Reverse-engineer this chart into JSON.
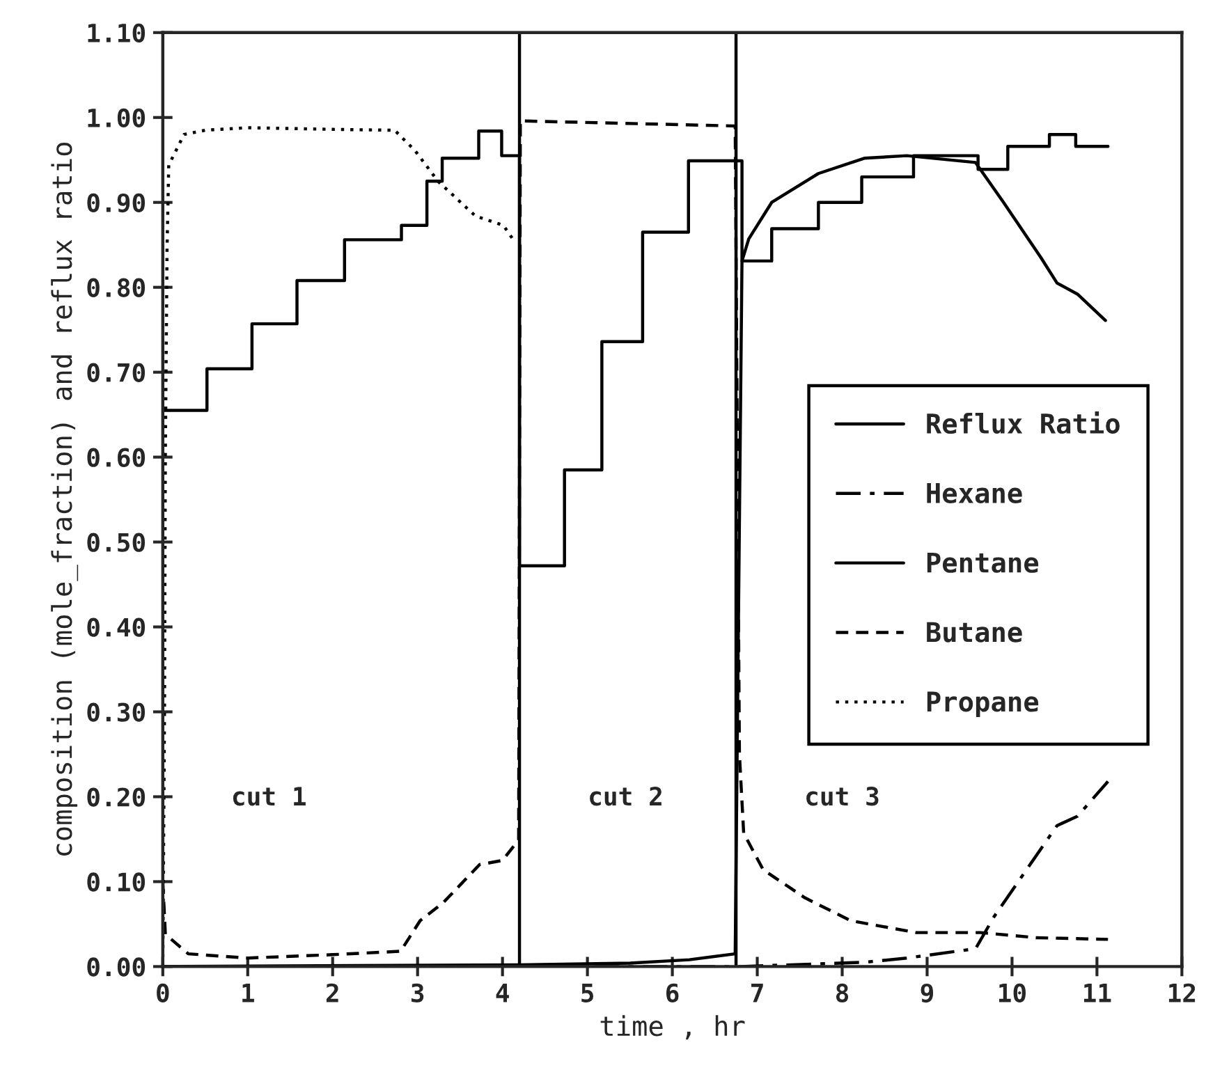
{
  "chart_data": {
    "type": "line",
    "xlabel": "time , hr",
    "ylabel": "composition (mole_fraction) and reflux ratio",
    "xlim": [
      0,
      12
    ],
    "xticks": [
      0,
      1,
      2,
      3,
      4,
      5,
      6,
      7,
      8,
      9,
      10,
      11,
      12
    ],
    "ylim": [
      0,
      1.1
    ],
    "yticks": [
      {
        "value": 0,
        "label": "0.00"
      },
      {
        "value": 0.1,
        "label": "0.10"
      },
      {
        "value": 0.2,
        "label": "0.20"
      },
      {
        "value": 0.3,
        "label": "0.30"
      },
      {
        "value": 0.4,
        "label": "0.40"
      },
      {
        "value": 0.5,
        "label": "0.50"
      },
      {
        "value": 0.6,
        "label": "0.60"
      },
      {
        "value": 0.7,
        "label": "0.70"
      },
      {
        "value": 0.8,
        "label": "0.80"
      },
      {
        "value": 0.9,
        "label": "0.90"
      },
      {
        "value": 1.0,
        "label": "1.00"
      },
      {
        "value": 1.1,
        "label": "1.10"
      }
    ],
    "grid": false,
    "legend": "right",
    "series": [
      {
        "name": "Reflux Ratio",
        "type": "step",
        "line_style": "solid",
        "color": "#000000",
        "x": [
          0,
          0.52,
          1.05,
          1.58,
          2.14,
          2.81,
          3.11,
          3.29,
          3.72,
          3.99,
          4.2,
          4.73,
          5.17,
          5.65,
          6.19,
          6.82,
          7.17,
          7.72,
          8.23,
          8.84,
          9.6,
          9.95,
          10.44,
          10.75,
          11.13
        ],
        "values": [
          0.655,
          0.704,
          0.757,
          0.808,
          0.856,
          0.873,
          0.925,
          0.952,
          0.984,
          0.955,
          0.472,
          0.585,
          0.736,
          0.865,
          0.949,
          0.831,
          0.869,
          0.9,
          0.93,
          0.955,
          0.939,
          0.966,
          0.98,
          0.966,
          0.966
        ]
      },
      {
        "name": "Hexane",
        "line_style": "dashdot",
        "color": "#000000",
        "x": [
          0,
          4.2,
          6.8,
          8.26,
          8.76,
          9.57,
          9.79,
          10.17,
          10.53,
          10.77,
          11.13
        ],
        "values": [
          0.0,
          0.0,
          0.0,
          0.005,
          0.01,
          0.021,
          0.059,
          0.114,
          0.166,
          0.177,
          0.218
        ]
      },
      {
        "name": "Pentane",
        "line_style": "solid",
        "color": "#000000",
        "x": [
          0,
          4.2,
          5.5,
          6.2,
          6.74,
          6.82,
          6.9,
          7.17,
          7.72,
          8.26,
          8.76,
          9.57,
          9.9,
          10.34,
          10.53,
          10.77,
          11.1
        ],
        "values": [
          0.0,
          0.002,
          0.004,
          0.008,
          0.015,
          0.831,
          0.857,
          0.9,
          0.934,
          0.952,
          0.955,
          0.947,
          0.9,
          0.835,
          0.805,
          0.792,
          0.761
        ]
      },
      {
        "name": "Butane",
        "line_style": "dashed",
        "color": "#000000",
        "x": [
          0,
          0.03,
          0.3,
          1.0,
          2.0,
          2.8,
          3.03,
          3.3,
          3.73,
          4.0,
          4.19,
          4.21,
          6.74,
          6.79,
          6.84,
          7.07,
          7.56,
          8.1,
          8.87,
          9.63,
          10.28,
          11.13
        ],
        "values": [
          0.1,
          0.038,
          0.015,
          0.01,
          0.014,
          0.018,
          0.054,
          0.075,
          0.12,
          0.125,
          0.149,
          0.996,
          0.99,
          0.25,
          0.157,
          0.114,
          0.081,
          0.054,
          0.04,
          0.04,
          0.034,
          0.032
        ]
      },
      {
        "name": "Propane",
        "line_style": "dotted",
        "color": "#000000",
        "x": [
          0,
          0.02,
          0.03,
          0.05,
          0.07,
          0.25,
          0.5,
          1.0,
          2.0,
          2.73,
          2.97,
          3.24,
          3.68,
          4.01,
          4.12
        ],
        "values": [
          0.0,
          0.3,
          0.6,
          0.846,
          0.944,
          0.98,
          0.985,
          0.988,
          0.986,
          0.985,
          0.961,
          0.925,
          0.884,
          0.873,
          0.857
        ]
      }
    ],
    "ref_lines": [
      {
        "axis": "x",
        "value": 4.2,
        "color": "#000000"
      },
      {
        "axis": "x",
        "value": 6.75,
        "color": "#000000"
      }
    ],
    "annotations": [
      "cut 1",
      "cut 2",
      "cut 3"
    ]
  }
}
